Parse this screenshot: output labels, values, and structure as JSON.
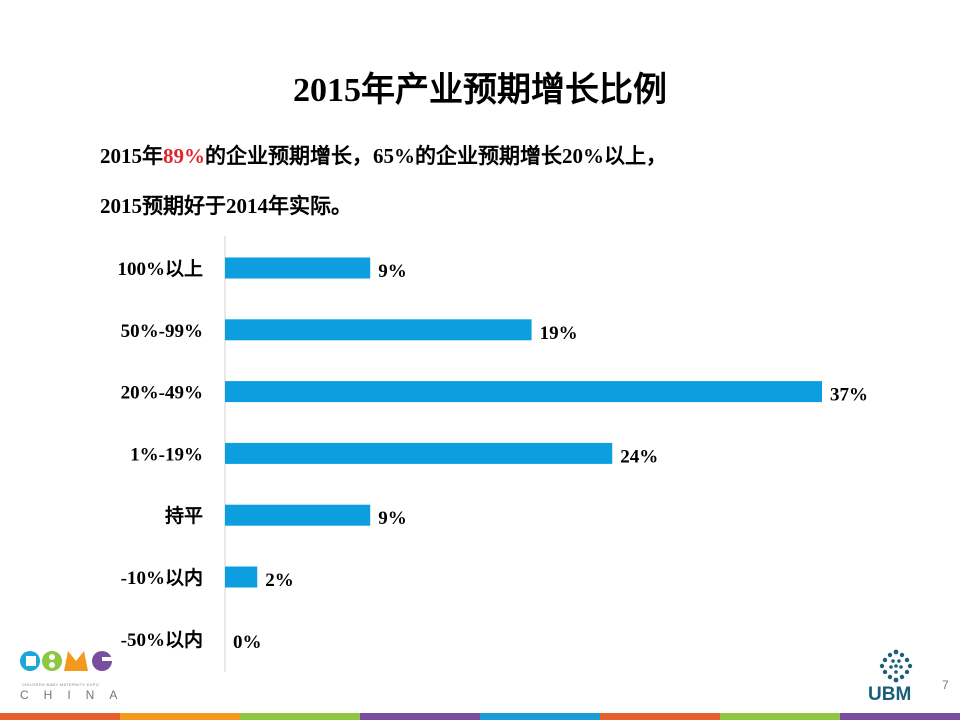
{
  "slide": {
    "title": "2015年产业预期增长比例",
    "subtitle_line1": {
      "part1": "2015年",
      "highlight": "89%",
      "part2": "的企业预期增长，65%的企业预期增长20%以上，"
    },
    "subtitle_line2": "2015预期好于2014年实际。",
    "page_number": "7"
  },
  "logos": {
    "cbme": {
      "text": "CBME",
      "small_text": "CHILDREN·BABY·MATERNITY EXPO",
      "china": "CHINA"
    },
    "ubm": {
      "text": "UBM"
    }
  },
  "colors": {
    "bar": "#0d9ee0",
    "highlight": "#e0242a",
    "axis": "#d0d0d0",
    "band": [
      "#e8602c",
      "#f39a1e",
      "#8dc63f",
      "#7a4e9e",
      "#1a9ad6",
      "#e8602c",
      "#8dc63f",
      "#7a4e9e"
    ]
  },
  "chart_data": {
    "type": "bar",
    "orientation": "horizontal",
    "categories": [
      "100%以上",
      "50%-99%",
      "20%-49%",
      "1%-19%",
      "持平",
      "-10%以内",
      "-50%以内"
    ],
    "values": [
      9,
      19,
      37,
      24,
      9,
      2,
      0
    ],
    "value_labels": [
      "9%",
      "19%",
      "37%",
      "24%",
      "9%",
      "2%",
      "0%"
    ],
    "title": "",
    "xlabel": "",
    "ylabel": "",
    "xlim": [
      0,
      37
    ],
    "grid": false,
    "legend": "none"
  }
}
